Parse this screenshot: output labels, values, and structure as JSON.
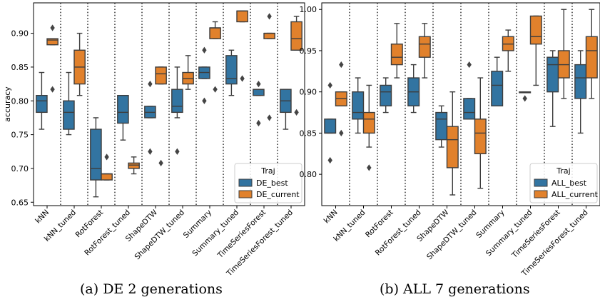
{
  "captions": [
    "(a) DE 2 generations",
    "(b) ALL 7 generations"
  ],
  "colors": {
    "series_0": "#3274a1",
    "series_1": "#e1812c"
  },
  "chart_data": [
    {
      "type": "box",
      "ylabel": "accuracy",
      "ylim": [
        0.645,
        0.945
      ],
      "yticks": [
        0.65,
        0.7,
        0.75,
        0.8,
        0.85,
        0.9
      ],
      "categories": [
        "kNN",
        "kNN_tuned",
        "RotForest",
        "RotForest_tuned",
        "ShapeDTW",
        "ShapeDTW_tuned",
        "Summary",
        "Summary_tuned",
        "TimeSeriesForest",
        "TimeSeriesForest_tuned"
      ],
      "separators_between_categories": true,
      "legend": {
        "title": "Traj",
        "placement": "lower-right",
        "entries": [
          "DE_best",
          "DE_current"
        ]
      },
      "series": [
        {
          "name": "DE_best",
          "boxes": [
            {
              "wl": 0.758,
              "q1": 0.783,
              "med": 0.8,
              "q3": 0.808,
              "wh": 0.842,
              "fliers": []
            },
            {
              "wl": 0.75,
              "q1": 0.758,
              "med": 0.783,
              "q3": 0.8,
              "wh": 0.842,
              "fliers": []
            },
            {
              "wl": 0.658,
              "q1": 0.683,
              "med": 0.7,
              "q3": 0.758,
              "wh": 0.775,
              "fliers": []
            },
            {
              "wl": 0.742,
              "q1": 0.767,
              "med": 0.783,
              "q3": 0.808,
              "wh": 0.808,
              "fliers": []
            },
            {
              "wl": 0.775,
              "q1": 0.775,
              "med": 0.783,
              "q3": 0.792,
              "wh": 0.792,
              "fliers": [
                0.825,
                0.725
              ]
            },
            {
              "wl": 0.775,
              "q1": 0.783,
              "med": 0.792,
              "q3": 0.817,
              "wh": 0.85,
              "fliers": [
                0.725
              ]
            },
            {
              "wl": 0.833,
              "q1": 0.833,
              "med": 0.842,
              "q3": 0.85,
              "wh": 0.85,
              "fliers": [
                0.875,
                0.8
              ]
            },
            {
              "wl": 0.808,
              "q1": 0.825,
              "med": 0.833,
              "q3": 0.867,
              "wh": 0.875,
              "fliers": []
            },
            {
              "wl": 0.808,
              "q1": 0.808,
              "med": 0.817,
              "q3": 0.817,
              "wh": 0.817,
              "fliers": [
                0.825,
                0.767
              ]
            },
            {
              "wl": 0.758,
              "q1": 0.783,
              "med": 0.8,
              "q3": 0.817,
              "wh": 0.817,
              "fliers": []
            }
          ]
        },
        {
          "name": "DE_current",
          "boxes": [
            {
              "wl": 0.883,
              "q1": 0.883,
              "med": 0.89,
              "q3": 0.892,
              "wh": 0.892,
              "fliers": [
                0.908,
                0.817
              ]
            },
            {
              "wl": 0.808,
              "q1": 0.825,
              "med": 0.85,
              "q3": 0.875,
              "wh": 0.9,
              "fliers": []
            },
            {
              "wl": 0.683,
              "q1": 0.683,
              "med": 0.692,
              "q3": 0.692,
              "wh": 0.692,
              "fliers": [
                0.717
              ]
            },
            {
              "wl": 0.692,
              "q1": 0.7,
              "med": 0.705,
              "q3": 0.708,
              "wh": 0.717,
              "fliers": []
            },
            {
              "wl": 0.825,
              "q1": 0.825,
              "med": 0.84,
              "q3": 0.85,
              "wh": 0.85,
              "fliers": [
                0.708
              ]
            },
            {
              "wl": 0.817,
              "q1": 0.825,
              "med": 0.833,
              "q3": 0.842,
              "wh": 0.867,
              "fliers": []
            },
            {
              "wl": 0.892,
              "q1": 0.892,
              "med": 0.908,
              "q3": 0.908,
              "wh": 0.917,
              "fliers": [
                0.817
              ]
            },
            {
              "wl": 0.917,
              "q1": 0.917,
              "med": 0.933,
              "q3": 0.933,
              "wh": 0.933,
              "fliers": [
                0.833
              ]
            },
            {
              "wl": 0.892,
              "q1": 0.892,
              "med": 0.9,
              "q3": 0.9,
              "wh": 0.9,
              "fliers": [
                0.925,
                0.775
              ]
            },
            {
              "wl": 0.875,
              "q1": 0.875,
              "med": 0.892,
              "q3": 0.917,
              "wh": 0.925,
              "fliers": [
                0.783
              ]
            }
          ]
        }
      ]
    },
    {
      "type": "box",
      "ylabel": "",
      "ylim": [
        0.762,
        1.008
      ],
      "yticks": [
        0.8,
        0.85,
        0.9,
        0.95,
        1.0
      ],
      "categories": [
        "kNN",
        "kNN_tuned",
        "RotForest",
        "RotForest_tuned",
        "ShapeDTW",
        "ShapeDTW_tuned",
        "Summary",
        "Summary_tuned",
        "TimeSeriesForest",
        "TimeSeriesForest_tuned"
      ],
      "separators_between_categories": true,
      "legend": {
        "title": "Traj",
        "placement": "lower-right",
        "entries": [
          "ALL_best",
          "ALL_current"
        ]
      },
      "series": [
        {
          "name": "ALL_best",
          "boxes": [
            {
              "wl": 0.85,
              "q1": 0.85,
              "med": 0.85,
              "q3": 0.867,
              "wh": 0.867,
              "fliers": [
                0.908,
                0.817
              ]
            },
            {
              "wl": 0.85,
              "q1": 0.867,
              "med": 0.875,
              "q3": 0.9,
              "wh": 0.917,
              "fliers": []
            },
            {
              "wl": 0.875,
              "q1": 0.883,
              "med": 0.9,
              "q3": 0.908,
              "wh": 0.917,
              "fliers": []
            },
            {
              "wl": 0.875,
              "q1": 0.883,
              "med": 0.9,
              "q3": 0.917,
              "wh": 0.933,
              "fliers": []
            },
            {
              "wl": 0.833,
              "q1": 0.842,
              "med": 0.867,
              "q3": 0.875,
              "wh": 0.883,
              "fliers": []
            },
            {
              "wl": 0.867,
              "q1": 0.867,
              "med": 0.875,
              "q3": 0.892,
              "wh": 0.892,
              "fliers": [
                0.933
              ]
            },
            {
              "wl": 0.883,
              "q1": 0.883,
              "med": 0.908,
              "q3": 0.925,
              "wh": 0.942,
              "fliers": []
            },
            {
              "wl": 0.9,
              "q1": 0.9,
              "med": 0.9,
              "q3": 0.9,
              "wh": 0.9,
              "fliers": [
                0.892
              ]
            },
            {
              "wl": 0.858,
              "q1": 0.9,
              "med": 0.933,
              "q3": 0.942,
              "wh": 0.95,
              "fliers": []
            },
            {
              "wl": 0.85,
              "q1": 0.892,
              "med": 0.917,
              "q3": 0.933,
              "wh": 0.95,
              "fliers": []
            }
          ]
        },
        {
          "name": "ALL_current",
          "boxes": [
            {
              "wl": 0.883,
              "q1": 0.883,
              "med": 0.892,
              "q3": 0.9,
              "wh": 0.9,
              "fliers": [
                0.933,
                0.85
              ]
            },
            {
              "wl": 0.833,
              "q1": 0.85,
              "med": 0.867,
              "q3": 0.875,
              "wh": 0.908,
              "fliers": [
                0.808
              ]
            },
            {
              "wl": 0.917,
              "q1": 0.933,
              "med": 0.942,
              "q3": 0.958,
              "wh": 0.983,
              "fliers": []
            },
            {
              "wl": 0.917,
              "q1": 0.942,
              "med": 0.958,
              "q3": 0.967,
              "wh": 0.983,
              "fliers": []
            },
            {
              "wl": 0.775,
              "q1": 0.808,
              "med": 0.842,
              "q3": 0.858,
              "wh": 0.9,
              "fliers": []
            },
            {
              "wl": 0.783,
              "q1": 0.825,
              "med": 0.85,
              "q3": 0.867,
              "wh": 0.917,
              "fliers": []
            },
            {
              "wl": 0.925,
              "q1": 0.95,
              "med": 0.958,
              "q3": 0.967,
              "wh": 0.975,
              "fliers": []
            },
            {
              "wl": 0.908,
              "q1": 0.958,
              "med": 0.967,
              "q3": 0.992,
              "wh": 0.992,
              "fliers": []
            },
            {
              "wl": 0.892,
              "q1": 0.917,
              "med": 0.933,
              "q3": 0.95,
              "wh": 1.0,
              "fliers": []
            },
            {
              "wl": 0.892,
              "q1": 0.917,
              "med": 0.95,
              "q3": 0.967,
              "wh": 1.0,
              "fliers": []
            }
          ]
        }
      ]
    }
  ]
}
